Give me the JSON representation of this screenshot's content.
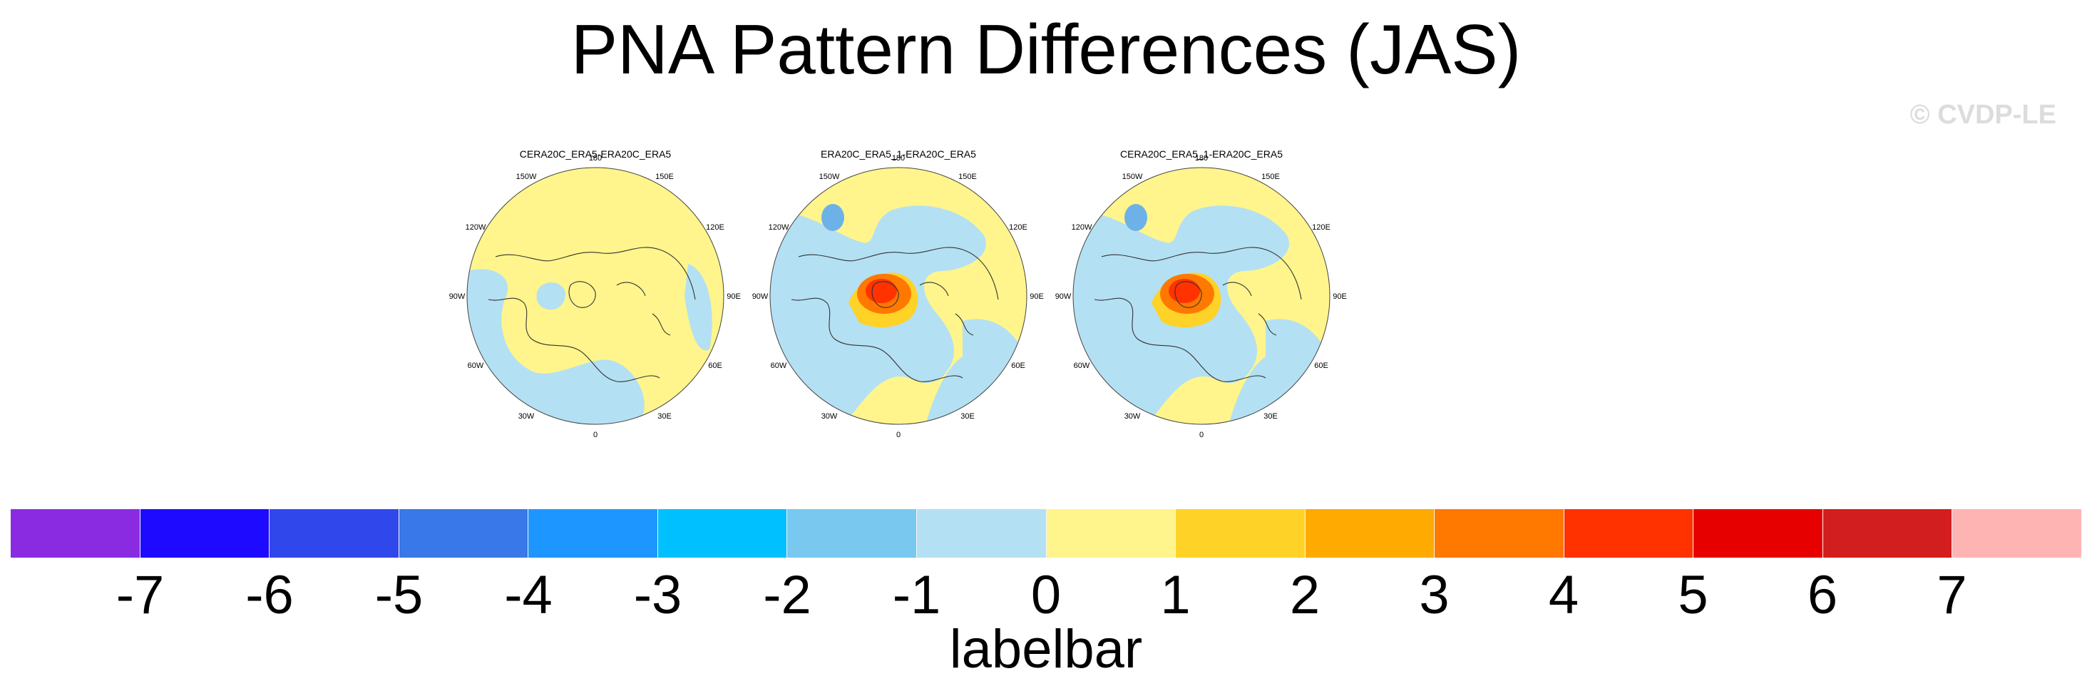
{
  "title": "PNA Pattern Differences (JAS)",
  "watermark": "© CVDP-LE",
  "panels": [
    {
      "title": "CERA20C_ERA5-ERA20C_ERA5",
      "variant": "a"
    },
    {
      "title": "ERA20C_ERA5_1-ERA20C_ERA5",
      "variant": "b"
    },
    {
      "title": "CERA20C_ERA5_1-ERA20C_ERA5",
      "variant": "c"
    }
  ],
  "longitude_labels": [
    "180",
    "150E",
    "120E",
    "90E",
    "60E",
    "30E",
    "0",
    "30W",
    "60W",
    "90W",
    "120W",
    "150W"
  ],
  "labelbar": {
    "title": "labelbar",
    "ticks": [
      "-7",
      "-6",
      "-5",
      "-4",
      "-3",
      "-2",
      "-1",
      "0",
      "1",
      "2",
      "3",
      "4",
      "5",
      "6",
      "7"
    ],
    "colors": [
      "#8a2be2",
      "#1e0aff",
      "#3048eb",
      "#3878e8",
      "#1e96ff",
      "#00c0ff",
      "#78c8f0",
      "#b4e0f3",
      "#fff58c",
      "#ffd228",
      "#ffaa00",
      "#ff7800",
      "#ff3200",
      "#e60000",
      "#d21e1e",
      "#ffb4b4"
    ]
  }
}
